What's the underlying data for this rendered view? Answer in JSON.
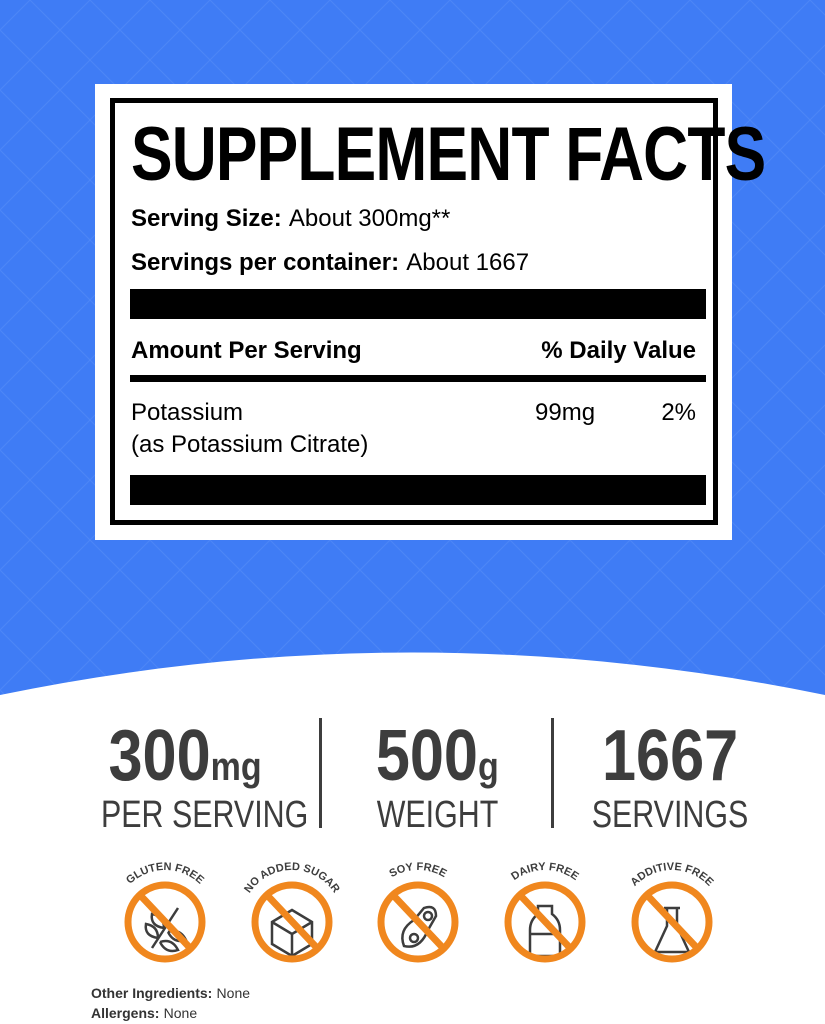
{
  "colors": {
    "background": "#3f7cf5",
    "badge": "#f0871e",
    "text": "#3d3d3d"
  },
  "facts": {
    "title": "SUPPLEMENT FACTS",
    "serving_size_label": "Serving Size:",
    "serving_size_value": "About 300mg**",
    "servings_label": "Servings per container:",
    "servings_value": "About 1667",
    "amount_header": "Amount Per Serving",
    "dv_header": "% Daily Value",
    "rows": [
      {
        "name": "Potassium",
        "sub": "(as Potassium Citrate)",
        "amount": "99mg",
        "dv": "2%"
      }
    ]
  },
  "stats": [
    {
      "num": "300",
      "unit": "mg",
      "caption": "PER SERVING"
    },
    {
      "num": "500",
      "unit": "g",
      "caption": "WEIGHT"
    },
    {
      "num": "1667",
      "unit": "",
      "caption": "SERVINGS"
    }
  ],
  "badges": [
    {
      "label": "GLUTEN FREE",
      "icon": "wheat-icon"
    },
    {
      "label": "NO ADDED SUGAR",
      "icon": "sugar-cube-icon"
    },
    {
      "label": "SOY FREE",
      "icon": "soybean-icon"
    },
    {
      "label": "DAIRY FREE",
      "icon": "milk-bottle-icon"
    },
    {
      "label": "ADDITIVE FREE",
      "icon": "flask-icon"
    }
  ],
  "footer": {
    "other_label": "Other Ingredients:",
    "other_value": "None",
    "allergens_label": "Allergens:",
    "allergens_value": "None"
  }
}
